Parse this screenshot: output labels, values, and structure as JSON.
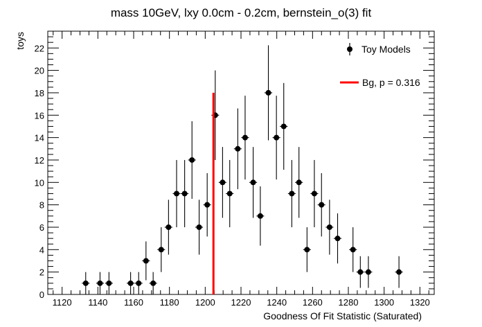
{
  "chart_data": {
    "type": "scatter",
    "title": "mass 10GeV, lxy 0.0cm - 0.2cm, bernstein_o(3) fit",
    "xlabel": "Goodness Of Fit Statistic (Saturated)",
    "ylabel": "toys",
    "xlim": [
      1112,
      1328
    ],
    "ylim": [
      0,
      23.5
    ],
    "xticks": [
      1120,
      1140,
      1160,
      1180,
      1200,
      1220,
      1240,
      1260,
      1280,
      1300,
      1320
    ],
    "yticks": [
      0,
      2,
      4,
      6,
      8,
      10,
      12,
      14,
      16,
      18,
      20,
      22
    ],
    "grid": false,
    "legend_position": "top-right",
    "series": [
      {
        "name": "Toy Models",
        "color": "#000000",
        "points": [
          {
            "x": 1133.2,
            "y": 1
          },
          {
            "x": 1141.2,
            "y": 1
          },
          {
            "x": 1146.2,
            "y": 1
          },
          {
            "x": 1158.3,
            "y": 1
          },
          {
            "x": 1162.8,
            "y": 1
          },
          {
            "x": 1166.9,
            "y": 3
          },
          {
            "x": 1170.9,
            "y": 1
          },
          {
            "x": 1175.4,
            "y": 4
          },
          {
            "x": 1179.5,
            "y": 6
          },
          {
            "x": 1184.0,
            "y": 9
          },
          {
            "x": 1188.5,
            "y": 9
          },
          {
            "x": 1192.6,
            "y": 12
          },
          {
            "x": 1196.6,
            "y": 6
          },
          {
            "x": 1201.1,
            "y": 8
          },
          {
            "x": 1205.6,
            "y": 16
          },
          {
            "x": 1209.7,
            "y": 10
          },
          {
            "x": 1213.7,
            "y": 9
          },
          {
            "x": 1218.2,
            "y": 13
          },
          {
            "x": 1222.3,
            "y": 14
          },
          {
            "x": 1226.8,
            "y": 10
          },
          {
            "x": 1230.8,
            "y": 7
          },
          {
            "x": 1235.3,
            "y": 18
          },
          {
            "x": 1239.8,
            "y": 14
          },
          {
            "x": 1243.9,
            "y": 15
          },
          {
            "x": 1248.4,
            "y": 9
          },
          {
            "x": 1252.4,
            "y": 10
          },
          {
            "x": 1256.9,
            "y": 4
          },
          {
            "x": 1261.0,
            "y": 9
          },
          {
            "x": 1265.0,
            "y": 8
          },
          {
            "x": 1269.5,
            "y": 6
          },
          {
            "x": 1274.0,
            "y": 5
          },
          {
            "x": 1282.6,
            "y": 4
          },
          {
            "x": 1286.7,
            "y": 2
          },
          {
            "x": 1291.2,
            "y": 2
          },
          {
            "x": 1308.3,
            "y": 2
          }
        ]
      },
      {
        "name": "Bg, p = 0.316",
        "type": "vertical-line",
        "color": "#ff0000",
        "x": 1204.6,
        "y_top": 18
      }
    ]
  }
}
